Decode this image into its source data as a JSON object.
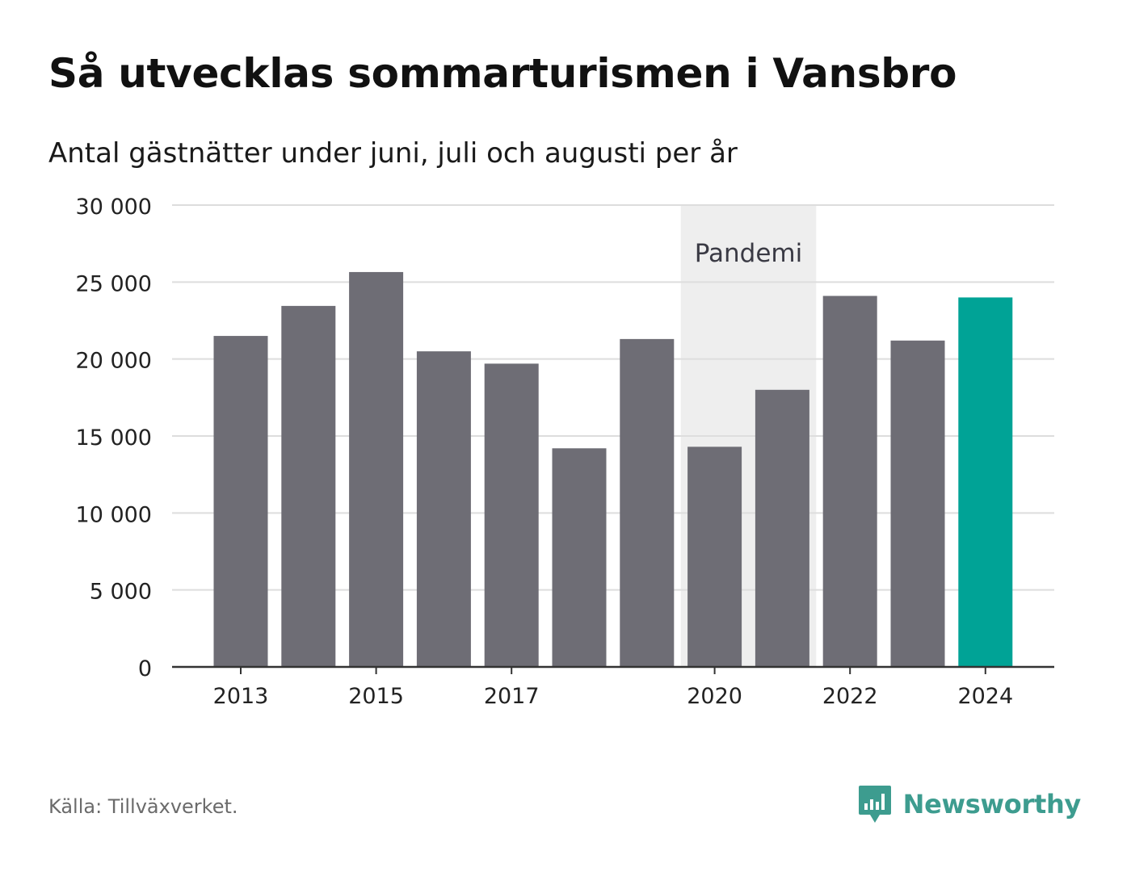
{
  "header": {
    "title": "Så utvecklas sommarturismen i Vansbro",
    "subtitle": "Antal gästnätter under juni, juli och augusti per år"
  },
  "footer": {
    "source": "Källa: Tillväxverket.",
    "brand": "Newsworthy",
    "brand_icon": "bar-chart-speech-bubble-icon"
  },
  "colors": {
    "bar": "#6e6d75",
    "highlight": "#00a396",
    "band": "#eeeeee",
    "grid": "#dddddd",
    "axis": "#333333",
    "brand": "#3d9c8f"
  },
  "chart_data": {
    "type": "bar",
    "title": "Så utvecklas sommarturismen i Vansbro",
    "subtitle": "Antal gästnätter under juni, juli och augusti per år",
    "categories": [
      "2013",
      "2014",
      "2015",
      "2016",
      "2017",
      "2018",
      "2019",
      "2020",
      "2021",
      "2022",
      "2023",
      "2024"
    ],
    "values": [
      21500,
      23450,
      25650,
      20500,
      19700,
      14200,
      21300,
      14300,
      18000,
      24100,
      21200,
      24000
    ],
    "highlight": "2024",
    "xtick_labels": [
      "2013",
      "2015",
      "2017",
      "2020",
      "2022",
      "2024"
    ],
    "yticks": [
      0,
      5000,
      10000,
      15000,
      20000,
      25000,
      30000
    ],
    "ytick_labels": [
      "0",
      "5 000",
      "10 000",
      "15 000",
      "20 000",
      "25 000",
      "30 000"
    ],
    "ylim": [
      0,
      30000
    ],
    "grid": true,
    "annotation": {
      "label": "Pandemi",
      "from": "2020",
      "to": "2021"
    }
  }
}
